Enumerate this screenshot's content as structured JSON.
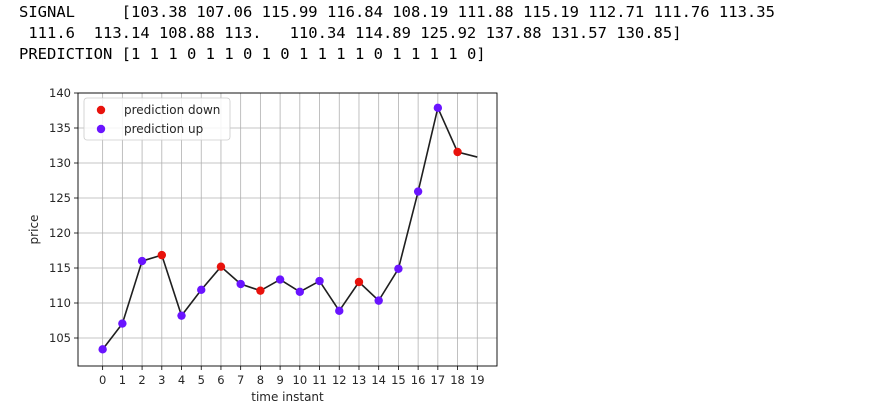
{
  "console": {
    "signal_label": "SIGNAL",
    "signal_line1": "[103.38 107.06 115.99 116.84 108.19 111.88 115.19 112.71 111.76 113.35",
    "signal_line2": " 111.6  113.14 108.88 113.   110.34 114.89 125.92 137.88 131.57 130.85]",
    "prediction_label": "PREDICTION",
    "prediction_value": "[1 1 1 0 1 1 0 1 0 1 1 1 1 0 1 1 1 1 0]"
  },
  "chart_data": {
    "type": "line",
    "x": [
      0,
      1,
      2,
      3,
      4,
      5,
      6,
      7,
      8,
      9,
      10,
      11,
      12,
      13,
      14,
      15,
      16,
      17,
      18,
      19
    ],
    "x_tick_labels": [
      "0",
      "1",
      "2",
      "3",
      "4",
      "5",
      "6",
      "7",
      "8",
      "9",
      "10",
      "11",
      "12",
      "13",
      "14",
      "15",
      "16",
      "17",
      "18",
      "19"
    ],
    "price": [
      103.38,
      107.06,
      115.99,
      116.84,
      108.19,
      111.88,
      115.19,
      112.71,
      111.76,
      113.35,
      111.6,
      113.14,
      108.88,
      113.0,
      110.34,
      114.89,
      125.92,
      137.88,
      131.57,
      130.85
    ],
    "prediction": [
      1,
      1,
      1,
      0,
      1,
      1,
      0,
      1,
      0,
      1,
      1,
      1,
      1,
      0,
      1,
      1,
      1,
      1,
      0
    ],
    "xlabel": "time instant",
    "ylabel": "price",
    "ylim": [
      101,
      140
    ],
    "y_ticks": [
      105,
      110,
      115,
      120,
      125,
      130,
      135,
      140
    ],
    "xlim": [
      -1.25,
      20.0
    ],
    "grid": true,
    "legend_position": "top-left",
    "series": [
      {
        "name": "prediction down",
        "color": "#e8120c"
      },
      {
        "name": "prediction up",
        "color": "#6a14ff"
      }
    ],
    "line_color": "#1f1f1f"
  }
}
